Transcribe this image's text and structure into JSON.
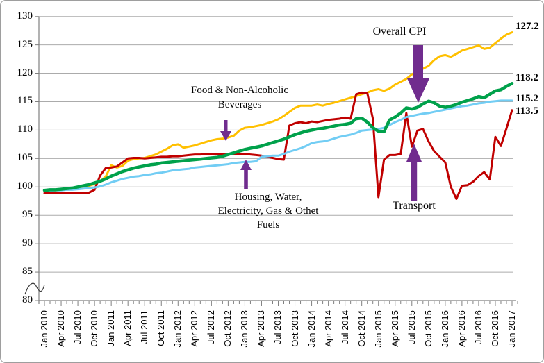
{
  "frame": {
    "background": "#FFFFFF",
    "border_color": "#9E9E9E"
  },
  "chart_data": {
    "type": "line",
    "title": "",
    "x_range": "Jan 2010 to Jan 2017, monthly (85 points)",
    "x_tick_labels": [
      "Jan 2010",
      "Apr 2010",
      "Jul 2010",
      "Oct 2010",
      "Jan 2011",
      "Apr 2011",
      "Jul 2011",
      "Oct 2011",
      "Jan 2012",
      "Apr 2012",
      "Jul 2012",
      "Oct 2012",
      "Jan 2013",
      "Apr 2013",
      "Jul 2013",
      "Oct 2013",
      "Jan 2014",
      "Apr 2014",
      "Jul 2014",
      "Oct 2014",
      "Jan 2015",
      "Apr 2015",
      "Jul 2015",
      "Oct 2015",
      "Jan 2016",
      "Apr 2016",
      "Jul 2016",
      "Oct 2016",
      "Jan 2017"
    ],
    "y_ticks": [
      130,
      125,
      120,
      115,
      110,
      105,
      100,
      95,
      90,
      85,
      80
    ],
    "ylim": [
      80,
      130
    ],
    "y_axis_break": true,
    "grid": true,
    "gridline_color": "#ABABAB",
    "axis_color": "#808080",
    "arrow_color": "#702C8E",
    "series": [
      {
        "name": "Overall CPI",
        "color": "#FFC000",
        "line_width": 3,
        "end_label": "127.2",
        "values": [
          99.3,
          99.3,
          99.4,
          99.5,
          99.5,
          99.6,
          99.8,
          100.0,
          100.2,
          100.5,
          101.0,
          101.8,
          103.8,
          103.4,
          103.7,
          104.6,
          104.9,
          105.0,
          105.1,
          105.4,
          105.7,
          106.2,
          106.7,
          107.3,
          107.5,
          106.9,
          107.1,
          107.3,
          107.6,
          107.9,
          108.2,
          108.4,
          108.5,
          108.7,
          109.0,
          109.9,
          110.4,
          110.5,
          110.7,
          110.9,
          111.2,
          111.5,
          111.9,
          112.5,
          113.2,
          113.9,
          114.3,
          114.3,
          114.3,
          114.5,
          114.3,
          114.6,
          114.8,
          115.1,
          115.4,
          115.7,
          116.0,
          116.3,
          116.6,
          117.0,
          117.2,
          116.9,
          117.3,
          118.0,
          118.5,
          119.0,
          119.8,
          120.4,
          120.8,
          121.3,
          122.3,
          123.0,
          123.2,
          122.9,
          123.4,
          124.0,
          124.3,
          124.6,
          124.9,
          124.3,
          124.5,
          125.3,
          126.1,
          126.8,
          127.2
        ]
      },
      {
        "name": "Food & Non-Alcoholic Beverages",
        "color": "#00A14B",
        "line_width": 4.5,
        "end_label": "118.2",
        "values": [
          99.4,
          99.5,
          99.5,
          99.6,
          99.7,
          99.8,
          100.0,
          100.2,
          100.4,
          100.7,
          101.0,
          101.4,
          101.9,
          102.3,
          102.7,
          103.0,
          103.3,
          103.5,
          103.7,
          103.9,
          104.0,
          104.2,
          104.3,
          104.4,
          104.5,
          104.6,
          104.7,
          104.8,
          104.9,
          105.0,
          105.1,
          105.2,
          105.4,
          105.7,
          106.0,
          106.3,
          106.6,
          106.8,
          107.0,
          107.2,
          107.5,
          107.8,
          108.1,
          108.4,
          108.8,
          109.2,
          109.5,
          109.8,
          110.0,
          110.2,
          110.3,
          110.5,
          110.7,
          110.9,
          111.0,
          111.2,
          112.0,
          112.1,
          111.4,
          110.4,
          109.8,
          109.7,
          111.8,
          112.3,
          113.0,
          113.9,
          113.7,
          114.0,
          114.6,
          115.1,
          114.8,
          114.2,
          114.0,
          114.2,
          114.5,
          114.9,
          115.2,
          115.5,
          115.9,
          115.7,
          116.3,
          116.9,
          117.1,
          117.7,
          118.2
        ]
      },
      {
        "name": "Housing, Water, Electricity, Gas & Othet Fuels",
        "color": "#72CDF4",
        "line_width": 3,
        "end_label": "115.2",
        "values": [
          99.3,
          99.3,
          99.4,
          99.4,
          99.5,
          99.5,
          99.6,
          99.7,
          99.8,
          99.9,
          100.1,
          100.4,
          100.8,
          101.1,
          101.4,
          101.6,
          101.8,
          101.9,
          102.1,
          102.2,
          102.4,
          102.5,
          102.7,
          102.9,
          103.0,
          103.1,
          103.2,
          103.4,
          103.5,
          103.6,
          103.7,
          103.8,
          103.9,
          104.0,
          104.2,
          104.3,
          104.4,
          104.4,
          104.5,
          105.3,
          105.4,
          105.5,
          105.5,
          105.8,
          106.2,
          106.5,
          106.8,
          107.2,
          107.7,
          107.9,
          108.0,
          108.2,
          108.5,
          108.8,
          109.0,
          109.2,
          109.5,
          109.9,
          110.0,
          110.1,
          110.2,
          110.4,
          110.9,
          111.4,
          111.8,
          112.3,
          112.5,
          112.7,
          112.9,
          113.0,
          113.2,
          113.4,
          113.6,
          113.8,
          114.0,
          114.2,
          114.3,
          114.5,
          114.7,
          114.8,
          115.0,
          115.1,
          115.2,
          115.2,
          115.2
        ]
      },
      {
        "name": "Transport",
        "color": "#C00000",
        "line_width": 3,
        "end_label": "113.5",
        "values": [
          98.9,
          98.9,
          98.9,
          98.9,
          98.9,
          98.9,
          98.9,
          99.0,
          99.0,
          99.5,
          102.0,
          103.3,
          103.4,
          103.6,
          104.3,
          105.0,
          105.1,
          105.1,
          105.0,
          105.1,
          105.2,
          105.3,
          105.3,
          105.4,
          105.4,
          105.5,
          105.6,
          105.7,
          105.7,
          105.8,
          105.8,
          105.8,
          105.8,
          105.8,
          105.8,
          105.8,
          105.8,
          105.7,
          105.6,
          105.5,
          105.3,
          105.1,
          104.9,
          104.8,
          110.8,
          111.2,
          111.4,
          111.2,
          111.5,
          111.4,
          111.6,
          111.8,
          111.9,
          112.0,
          112.2,
          112.0,
          116.3,
          116.6,
          116.5,
          112.0,
          98.2,
          104.8,
          105.6,
          105.6,
          105.8,
          113.0,
          107.1,
          109.9,
          110.2,
          108.0,
          106.3,
          105.3,
          104.3,
          100.0,
          97.9,
          100.2,
          100.3,
          100.9,
          101.9,
          102.6,
          101.3,
          108.8,
          107.2,
          110.3,
          113.5
        ]
      }
    ],
    "annotations": [
      {
        "id": "overall-cpi",
        "lines": [
          "Overall CPI"
        ],
        "arrow": "down"
      },
      {
        "id": "food",
        "lines": [
          "Food & Non-Alcoholic",
          "Beverages"
        ],
        "arrow": "down"
      },
      {
        "id": "housing",
        "lines": [
          "Housing, Water,",
          "Electricity, Gas & Othet",
          "Fuels"
        ],
        "arrow": "up"
      },
      {
        "id": "transport",
        "lines": [
          "Transport"
        ],
        "arrow": "up"
      }
    ]
  }
}
